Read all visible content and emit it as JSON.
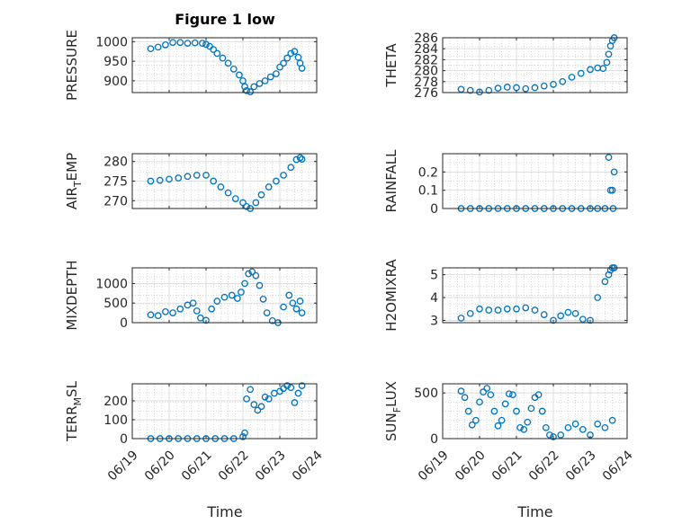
{
  "figure": {
    "title": "Figure 1 low",
    "xlabel": "Time",
    "xticklabels": [
      "06/19",
      "06/20",
      "06/21",
      "06/22",
      "06/23",
      "06/24"
    ],
    "marker_color": "#0072bd"
  },
  "chart_data": [
    {
      "type": "scatter",
      "id": "pressure",
      "ylabel": "PRESSURE",
      "xlim": [
        0,
        5
      ],
      "ylim": [
        870,
        1010
      ],
      "yticks": [
        900,
        950,
        1000
      ],
      "x": [
        0.5,
        0.7,
        0.9,
        1.1,
        1.3,
        1.5,
        1.7,
        1.9,
        2.0,
        2.1,
        2.2,
        2.3,
        2.45,
        2.6,
        2.75,
        2.9,
        3.0,
        3.05,
        3.1,
        3.2,
        3.3,
        3.45,
        3.6,
        3.75,
        3.9,
        4.0,
        4.1,
        4.2,
        4.3,
        4.4,
        4.5,
        4.55,
        4.6
      ],
      "y": [
        982,
        986,
        992,
        998,
        998,
        996,
        997,
        996,
        993,
        988,
        980,
        970,
        958,
        945,
        930,
        915,
        900,
        885,
        875,
        872,
        885,
        893,
        900,
        910,
        918,
        935,
        945,
        958,
        970,
        975,
        960,
        945,
        932
      ]
    },
    {
      "type": "scatter",
      "id": "theta",
      "ylabel": "THETA",
      "xlim": [
        0,
        5
      ],
      "ylim": [
        276,
        286
      ],
      "yticks": [
        276,
        278,
        280,
        282,
        284,
        286
      ],
      "x": [
        0.5,
        0.75,
        1.0,
        1.25,
        1.5,
        1.75,
        2.0,
        2.25,
        2.5,
        2.75,
        3.0,
        3.25,
        3.5,
        3.75,
        4.0,
        4.2,
        4.35,
        4.45,
        4.5,
        4.55,
        4.6,
        4.65
      ],
      "y": [
        276.6,
        276.4,
        276.1,
        276.4,
        276.8,
        277.0,
        276.9,
        276.7,
        276.9,
        277.2,
        277.5,
        278.0,
        278.8,
        279.5,
        280.2,
        280.5,
        280.4,
        281.5,
        283,
        284.5,
        285.5,
        286
      ]
    },
    {
      "type": "scatter",
      "id": "air_temp",
      "ylabel": "AIR_TEMP",
      "ylabel_main": "AIR",
      "ylabel_sub": "T",
      "ylabel_rest": "EMP",
      "xlim": [
        0,
        5
      ],
      "ylim": [
        268,
        282
      ],
      "yticks": [
        270,
        275,
        280
      ],
      "x": [
        0.5,
        0.75,
        1.0,
        1.25,
        1.5,
        1.75,
        2.0,
        2.2,
        2.4,
        2.6,
        2.8,
        3.0,
        3.1,
        3.2,
        3.35,
        3.5,
        3.7,
        3.9,
        4.1,
        4.3,
        4.45,
        4.55,
        4.6
      ],
      "y": [
        275,
        275.2,
        275.5,
        275.8,
        276.2,
        276.5,
        276.5,
        275,
        273.5,
        272,
        270.5,
        269.5,
        268.5,
        268,
        269.5,
        271.5,
        273.5,
        275,
        276.5,
        278.5,
        280.5,
        281,
        280.6
      ]
    },
    {
      "type": "scatter",
      "id": "rainfall",
      "ylabel": "RAINFALL",
      "xlim": [
        0,
        5
      ],
      "ylim": [
        0,
        0.3
      ],
      "yticks": [
        0,
        0.1,
        0.2
      ],
      "x": [
        0.5,
        0.75,
        1.0,
        1.25,
        1.5,
        1.75,
        2.0,
        2.25,
        2.5,
        2.75,
        3.0,
        3.25,
        3.5,
        3.75,
        4.0,
        4.2,
        4.4,
        4.5,
        4.55,
        4.6,
        4.62,
        4.65
      ],
      "y": [
        0,
        0,
        0,
        0,
        0,
        0,
        0,
        0,
        0,
        0,
        0,
        0,
        0,
        0,
        0,
        0,
        0,
        0.28,
        0.1,
        0.1,
        0,
        0.2
      ]
    },
    {
      "type": "scatter",
      "id": "mixdepth",
      "ylabel": "MIXDEPTH",
      "xlim": [
        0,
        5
      ],
      "ylim": [
        0,
        1400
      ],
      "yticks": [
        0,
        500,
        1000
      ],
      "x": [
        0.5,
        0.7,
        0.9,
        1.1,
        1.3,
        1.5,
        1.65,
        1.75,
        1.85,
        2.0,
        2.15,
        2.3,
        2.5,
        2.7,
        2.85,
        2.95,
        3.05,
        3.15,
        3.25,
        3.35,
        3.45,
        3.55,
        3.65,
        3.8,
        3.95,
        4.1,
        4.25,
        4.35,
        4.45,
        4.55,
        4.6
      ],
      "y": [
        200,
        180,
        280,
        250,
        350,
        450,
        500,
        300,
        120,
        60,
        350,
        550,
        650,
        700,
        620,
        780,
        1000,
        1250,
        1300,
        1200,
        950,
        600,
        250,
        50,
        0,
        400,
        700,
        500,
        350,
        550,
        250
      ]
    },
    {
      "type": "scatter",
      "id": "h2omixra",
      "ylabel": "H2OMIXRA",
      "xlim": [
        0,
        5
      ],
      "ylim": [
        2.9,
        5.3
      ],
      "yticks": [
        3,
        4,
        5
      ],
      "x": [
        0.5,
        0.75,
        1.0,
        1.25,
        1.5,
        1.75,
        2.0,
        2.25,
        2.5,
        2.75,
        3.0,
        3.2,
        3.4,
        3.6,
        3.8,
        4.0,
        4.2,
        4.4,
        4.5,
        4.55,
        4.6,
        4.65
      ],
      "y": [
        3.1,
        3.3,
        3.5,
        3.45,
        3.45,
        3.5,
        3.5,
        3.55,
        3.45,
        3.25,
        3.0,
        3.2,
        3.35,
        3.3,
        3.05,
        3.0,
        4.0,
        4.7,
        5.0,
        5.2,
        5.3,
        5.3
      ]
    },
    {
      "type": "scatter",
      "id": "terr_msl",
      "ylabel": "TERR_MSL",
      "ylabel_main": "TERR",
      "ylabel_sub": "M",
      "ylabel_rest": "SL",
      "xlim": [
        0,
        5
      ],
      "ylim": [
        0,
        290
      ],
      "yticks": [
        0,
        100,
        200
      ],
      "x": [
        0.5,
        0.75,
        1.0,
        1.25,
        1.5,
        1.75,
        2.0,
        2.25,
        2.5,
        2.75,
        3.0,
        3.05,
        3.1,
        3.2,
        3.3,
        3.4,
        3.5,
        3.6,
        3.7,
        3.85,
        4.0,
        4.1,
        4.2,
        4.3,
        4.4,
        4.5,
        4.6
      ],
      "y": [
        0,
        0,
        0,
        0,
        0,
        0,
        0,
        0,
        0,
        0,
        10,
        30,
        210,
        260,
        180,
        150,
        170,
        220,
        210,
        240,
        250,
        265,
        280,
        270,
        190,
        240,
        280
      ]
    },
    {
      "type": "scatter",
      "id": "sun_flux",
      "ylabel": "SUN_FLUX",
      "ylabel_main": "SUN",
      "ylabel_sub": "F",
      "ylabel_rest": "LUX",
      "xlim": [
        0,
        5
      ],
      "ylim": [
        0,
        600
      ],
      "yticks": [
        0,
        500
      ],
      "x": [
        0.5,
        0.6,
        0.7,
        0.8,
        0.9,
        1.0,
        1.1,
        1.2,
        1.3,
        1.4,
        1.5,
        1.6,
        1.7,
        1.8,
        1.9,
        2.0,
        2.1,
        2.2,
        2.3,
        2.4,
        2.5,
        2.6,
        2.7,
        2.8,
        2.9,
        3.0,
        3.2,
        3.4,
        3.6,
        3.8,
        4.0,
        4.2,
        4.4,
        4.6
      ],
      "y": [
        520,
        450,
        300,
        150,
        200,
        400,
        510,
        550,
        480,
        300,
        140,
        200,
        380,
        490,
        480,
        300,
        120,
        100,
        180,
        330,
        450,
        480,
        300,
        120,
        40,
        20,
        40,
        120,
        160,
        100,
        40,
        160,
        120,
        200
      ]
    }
  ]
}
